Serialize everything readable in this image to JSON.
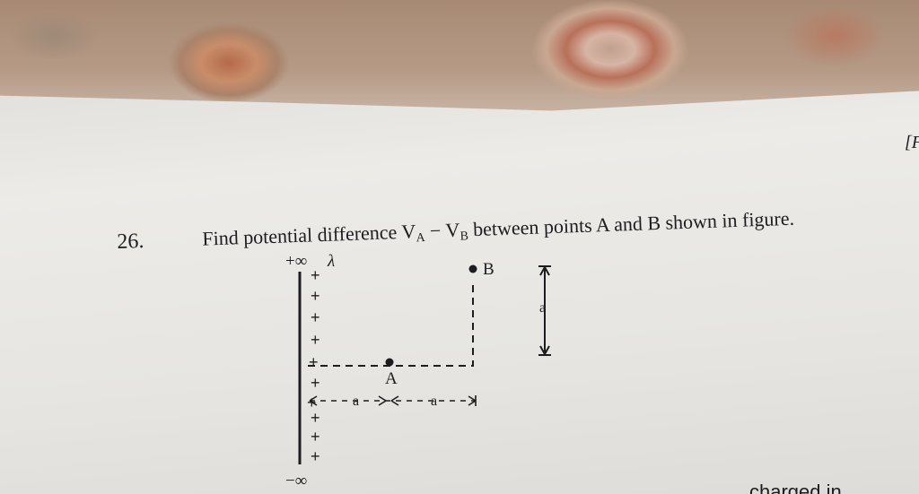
{
  "question": {
    "number": "26.",
    "text_before": "Find potential difference ",
    "va": "V",
    "va_sub": "A",
    "minus": " − ",
    "vb": "V",
    "vb_sub": "B",
    "text_after": " between points A and B shown in figure."
  },
  "figure": {
    "top_label": "+∞",
    "charge_label": "λ",
    "bottom_label": "−∞",
    "point_a": "A",
    "point_b": "B",
    "dist_1": "a",
    "dist_2": "a",
    "dist_3": "a",
    "charges": [
      "+",
      "+",
      "+",
      "+",
      "+",
      "+",
      "+",
      "+",
      "+",
      "+"
    ]
  },
  "margin_text": "[F",
  "bottom_text": "charged in"
}
